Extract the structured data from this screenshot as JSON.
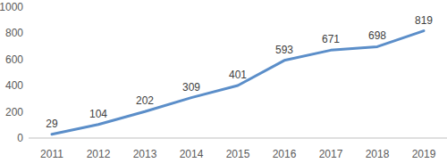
{
  "chart_data": {
    "type": "line",
    "categories": [
      "2011",
      "2012",
      "2013",
      "2014",
      "2015",
      "2016",
      "2017",
      "2018",
      "2019"
    ],
    "values": [
      29,
      104,
      202,
      309,
      401,
      593,
      671,
      698,
      819
    ],
    "color": "#5b8ec9",
    "ylim": [
      0,
      1000
    ],
    "yticks": [
      0,
      200,
      400,
      600,
      800,
      1000
    ],
    "grid": false,
    "data_labels": true
  }
}
